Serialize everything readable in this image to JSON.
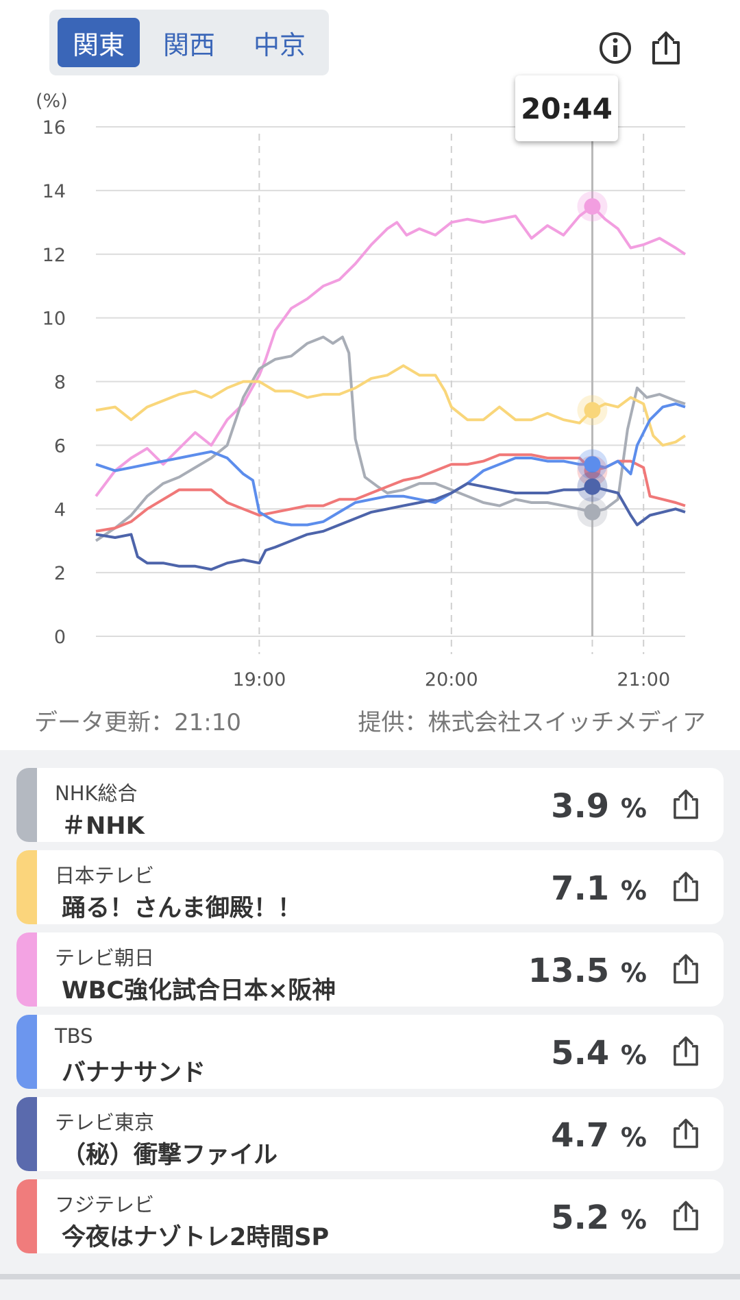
{
  "regions": [
    {
      "label": "関東",
      "active": true
    },
    {
      "label": "関西",
      "active": false
    },
    {
      "label": "中京",
      "active": false
    }
  ],
  "header_icons": [
    "info-icon",
    "share-icon"
  ],
  "chart_data": {
    "type": "line",
    "y_unit": "(%)",
    "ylim": [
      0,
      16
    ],
    "yticks": [
      0,
      2,
      4,
      6,
      8,
      10,
      12,
      14,
      16
    ],
    "xticks": [
      {
        "t": 1140,
        "label": "19:00"
      },
      {
        "t": 1200,
        "label": "20:00"
      },
      {
        "t": 1260,
        "label": "21:00"
      },
      {
        "t": 1244,
        "label": ""
      }
    ],
    "xlim": [
      1089,
      1273
    ],
    "tooltip_time": "20:44",
    "cursor_t": 1244,
    "series": [
      {
        "color": "#f29ee0",
        "values": [
          [
            1089,
            4.4
          ],
          [
            1095,
            5.2
          ],
          [
            1100,
            5.6
          ],
          [
            1105,
            5.9
          ],
          [
            1110,
            5.4
          ],
          [
            1115,
            5.9
          ],
          [
            1120,
            6.4
          ],
          [
            1125,
            6.0
          ],
          [
            1130,
            6.8
          ],
          [
            1135,
            7.3
          ],
          [
            1140,
            8.2
          ],
          [
            1142,
            8.7
          ],
          [
            1145,
            9.6
          ],
          [
            1150,
            10.3
          ],
          [
            1155,
            10.6
          ],
          [
            1160,
            11.0
          ],
          [
            1165,
            11.2
          ],
          [
            1170,
            11.7
          ],
          [
            1175,
            12.3
          ],
          [
            1180,
            12.8
          ],
          [
            1183,
            13.0
          ],
          [
            1186,
            12.6
          ],
          [
            1190,
            12.8
          ],
          [
            1195,
            12.6
          ],
          [
            1200,
            13.0
          ],
          [
            1205,
            13.1
          ],
          [
            1210,
            13.0
          ],
          [
            1215,
            13.1
          ],
          [
            1220,
            13.2
          ],
          [
            1225,
            12.5
          ],
          [
            1230,
            12.9
          ],
          [
            1235,
            12.6
          ],
          [
            1240,
            13.2
          ],
          [
            1244,
            13.5
          ],
          [
            1248,
            13.1
          ],
          [
            1252,
            12.8
          ],
          [
            1256,
            12.2
          ],
          [
            1260,
            12.3
          ],
          [
            1265,
            12.5
          ],
          [
            1270,
            12.2
          ],
          [
            1273,
            12.0
          ]
        ]
      },
      {
        "color": "#a8adb6",
        "values": [
          [
            1089,
            3.0
          ],
          [
            1095,
            3.4
          ],
          [
            1100,
            3.8
          ],
          [
            1105,
            4.4
          ],
          [
            1110,
            4.8
          ],
          [
            1115,
            5.0
          ],
          [
            1120,
            5.3
          ],
          [
            1125,
            5.6
          ],
          [
            1130,
            6.0
          ],
          [
            1135,
            7.5
          ],
          [
            1140,
            8.4
          ],
          [
            1145,
            8.7
          ],
          [
            1150,
            8.8
          ],
          [
            1155,
            9.2
          ],
          [
            1160,
            9.4
          ],
          [
            1163,
            9.2
          ],
          [
            1166,
            9.4
          ],
          [
            1168,
            8.9
          ],
          [
            1170,
            6.2
          ],
          [
            1173,
            5.0
          ],
          [
            1177,
            4.7
          ],
          [
            1180,
            4.5
          ],
          [
            1185,
            4.6
          ],
          [
            1190,
            4.8
          ],
          [
            1195,
            4.8
          ],
          [
            1200,
            4.6
          ],
          [
            1205,
            4.4
          ],
          [
            1210,
            4.2
          ],
          [
            1215,
            4.1
          ],
          [
            1220,
            4.3
          ],
          [
            1225,
            4.2
          ],
          [
            1230,
            4.2
          ],
          [
            1235,
            4.1
          ],
          [
            1240,
            4.0
          ],
          [
            1244,
            3.9
          ],
          [
            1248,
            4.0
          ],
          [
            1252,
            4.3
          ],
          [
            1255,
            6.5
          ],
          [
            1258,
            7.8
          ],
          [
            1261,
            7.5
          ],
          [
            1265,
            7.6
          ],
          [
            1270,
            7.4
          ],
          [
            1273,
            7.3
          ]
        ]
      },
      {
        "color": "#f9d67a",
        "values": [
          [
            1089,
            7.1
          ],
          [
            1095,
            7.2
          ],
          [
            1100,
            6.8
          ],
          [
            1105,
            7.2
          ],
          [
            1110,
            7.4
          ],
          [
            1115,
            7.6
          ],
          [
            1120,
            7.7
          ],
          [
            1125,
            7.5
          ],
          [
            1130,
            7.8
          ],
          [
            1135,
            8.0
          ],
          [
            1140,
            8.0
          ],
          [
            1145,
            7.7
          ],
          [
            1150,
            7.7
          ],
          [
            1155,
            7.5
          ],
          [
            1160,
            7.6
          ],
          [
            1165,
            7.6
          ],
          [
            1170,
            7.8
          ],
          [
            1175,
            8.1
          ],
          [
            1180,
            8.2
          ],
          [
            1185,
            8.5
          ],
          [
            1190,
            8.2
          ],
          [
            1195,
            8.2
          ],
          [
            1198,
            7.7
          ],
          [
            1200,
            7.2
          ],
          [
            1205,
            6.8
          ],
          [
            1210,
            6.8
          ],
          [
            1215,
            7.2
          ],
          [
            1220,
            6.8
          ],
          [
            1225,
            6.8
          ],
          [
            1230,
            7.0
          ],
          [
            1235,
            6.8
          ],
          [
            1240,
            6.7
          ],
          [
            1244,
            7.1
          ],
          [
            1248,
            7.3
          ],
          [
            1252,
            7.2
          ],
          [
            1256,
            7.5
          ],
          [
            1260,
            7.3
          ],
          [
            1263,
            6.3
          ],
          [
            1266,
            6.0
          ],
          [
            1270,
            6.1
          ],
          [
            1273,
            6.3
          ]
        ]
      },
      {
        "color": "#f07878",
        "values": [
          [
            1089,
            3.3
          ],
          [
            1095,
            3.4
          ],
          [
            1100,
            3.6
          ],
          [
            1105,
            4.0
          ],
          [
            1110,
            4.3
          ],
          [
            1115,
            4.6
          ],
          [
            1120,
            4.6
          ],
          [
            1125,
            4.6
          ],
          [
            1130,
            4.2
          ],
          [
            1135,
            4.0
          ],
          [
            1140,
            3.8
          ],
          [
            1145,
            3.9
          ],
          [
            1150,
            4.0
          ],
          [
            1155,
            4.1
          ],
          [
            1160,
            4.1
          ],
          [
            1165,
            4.3
          ],
          [
            1170,
            4.3
          ],
          [
            1175,
            4.5
          ],
          [
            1180,
            4.7
          ],
          [
            1185,
            4.9
          ],
          [
            1190,
            5.0
          ],
          [
            1195,
            5.2
          ],
          [
            1200,
            5.4
          ],
          [
            1205,
            5.4
          ],
          [
            1210,
            5.5
          ],
          [
            1215,
            5.7
          ],
          [
            1220,
            5.7
          ],
          [
            1225,
            5.7
          ],
          [
            1230,
            5.6
          ],
          [
            1235,
            5.6
          ],
          [
            1240,
            5.6
          ],
          [
            1244,
            5.2
          ],
          [
            1248,
            5.3
          ],
          [
            1252,
            5.5
          ],
          [
            1256,
            5.5
          ],
          [
            1260,
            5.3
          ],
          [
            1262,
            4.4
          ],
          [
            1266,
            4.3
          ],
          [
            1270,
            4.2
          ],
          [
            1273,
            4.1
          ]
        ]
      },
      {
        "color": "#5c8dec",
        "values": [
          [
            1089,
            5.4
          ],
          [
            1095,
            5.2
          ],
          [
            1100,
            5.3
          ],
          [
            1105,
            5.4
          ],
          [
            1110,
            5.5
          ],
          [
            1115,
            5.6
          ],
          [
            1120,
            5.7
          ],
          [
            1125,
            5.8
          ],
          [
            1130,
            5.6
          ],
          [
            1135,
            5.1
          ],
          [
            1138,
            4.9
          ],
          [
            1140,
            3.9
          ],
          [
            1145,
            3.6
          ],
          [
            1150,
            3.5
          ],
          [
            1155,
            3.5
          ],
          [
            1160,
            3.6
          ],
          [
            1165,
            3.9
          ],
          [
            1170,
            4.2
          ],
          [
            1175,
            4.3
          ],
          [
            1180,
            4.4
          ],
          [
            1185,
            4.4
          ],
          [
            1190,
            4.3
          ],
          [
            1195,
            4.2
          ],
          [
            1200,
            4.5
          ],
          [
            1205,
            4.8
          ],
          [
            1210,
            5.2
          ],
          [
            1215,
            5.4
          ],
          [
            1220,
            5.6
          ],
          [
            1225,
            5.6
          ],
          [
            1230,
            5.5
          ],
          [
            1235,
            5.5
          ],
          [
            1240,
            5.4
          ],
          [
            1244,
            5.4
          ],
          [
            1248,
            5.3
          ],
          [
            1252,
            5.5
          ],
          [
            1256,
            5.1
          ],
          [
            1258,
            6.0
          ],
          [
            1262,
            6.8
          ],
          [
            1266,
            7.2
          ],
          [
            1270,
            7.3
          ],
          [
            1273,
            7.2
          ]
        ]
      },
      {
        "color": "#4d64aa",
        "values": [
          [
            1089,
            3.2
          ],
          [
            1095,
            3.1
          ],
          [
            1100,
            3.2
          ],
          [
            1102,
            2.5
          ],
          [
            1105,
            2.3
          ],
          [
            1110,
            2.3
          ],
          [
            1115,
            2.2
          ],
          [
            1120,
            2.2
          ],
          [
            1125,
            2.1
          ],
          [
            1130,
            2.3
          ],
          [
            1135,
            2.4
          ],
          [
            1140,
            2.3
          ],
          [
            1142,
            2.7
          ],
          [
            1145,
            2.8
          ],
          [
            1150,
            3.0
          ],
          [
            1155,
            3.2
          ],
          [
            1160,
            3.3
          ],
          [
            1165,
            3.5
          ],
          [
            1170,
            3.7
          ],
          [
            1175,
            3.9
          ],
          [
            1180,
            4.0
          ],
          [
            1185,
            4.1
          ],
          [
            1190,
            4.2
          ],
          [
            1195,
            4.3
          ],
          [
            1200,
            4.5
          ],
          [
            1205,
            4.8
          ],
          [
            1210,
            4.7
          ],
          [
            1215,
            4.6
          ],
          [
            1220,
            4.5
          ],
          [
            1225,
            4.5
          ],
          [
            1230,
            4.5
          ],
          [
            1235,
            4.6
          ],
          [
            1240,
            4.6
          ],
          [
            1244,
            4.7
          ],
          [
            1248,
            4.6
          ],
          [
            1252,
            4.5
          ],
          [
            1256,
            3.8
          ],
          [
            1258,
            3.5
          ],
          [
            1262,
            3.8
          ],
          [
            1266,
            3.9
          ],
          [
            1270,
            4.0
          ],
          [
            1273,
            3.9
          ]
        ]
      }
    ]
  },
  "footer": {
    "updated": "データ更新：21:10",
    "provider": "提供：株式会社スイッチメディア"
  },
  "channels": [
    {
      "color": "#b4b9c1",
      "station": "NHK総合",
      "program": "＃NHK",
      "rating": "3.9",
      "unit": "%"
    },
    {
      "color": "#fbd57c",
      "station": "日本テレビ",
      "program": "踊る！さんま御殿！！",
      "rating": "7.1",
      "unit": "%"
    },
    {
      "color": "#f3a3e3",
      "station": "テレビ朝日",
      "program": "WBC強化試合日本×阪神",
      "rating": "13.5",
      "unit": "%"
    },
    {
      "color": "#6c96ee",
      "station": "TBS",
      "program": "バナナサンド",
      "rating": "5.4",
      "unit": "%"
    },
    {
      "color": "#5a6aad",
      "station": "テレビ東京",
      "program": "（秘）衝撃ファイル",
      "rating": "4.7",
      "unit": "%"
    },
    {
      "color": "#f07c7c",
      "station": "フジテレビ",
      "program": "今夜はナゾトレ2時間SP",
      "rating": "5.2",
      "unit": "%"
    }
  ]
}
